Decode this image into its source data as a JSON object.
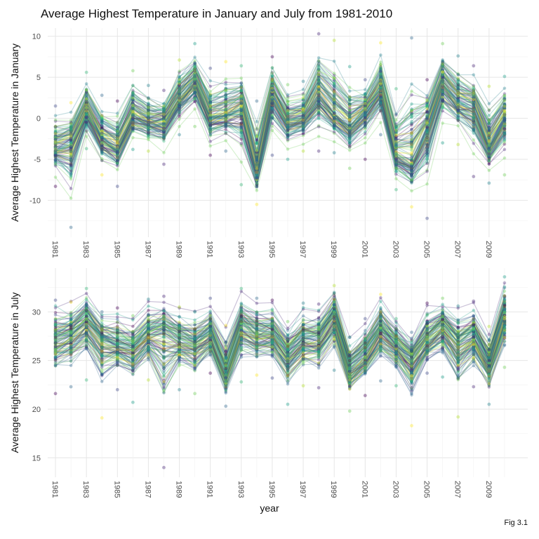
{
  "title": "Average Highest Temperature in January and July from 1981-2010",
  "caption": "Fig 3.1",
  "chart_data": [
    {
      "type": "line",
      "ylabel": "Average Highest Temperature in January",
      "xlabel": "",
      "x_ticks": [
        "1981",
        "1983",
        "1985",
        "1987",
        "1989",
        "1991",
        "1993",
        "1995",
        "1997",
        "1999",
        "2001",
        "2003",
        "2005",
        "2007",
        "2009"
      ],
      "xlim": [
        1980.5,
        2011.5
      ],
      "ylim": [
        -14.5,
        11
      ],
      "y_ticks": [
        -10,
        -5,
        0,
        5,
        10
      ],
      "grid": true,
      "legend": "none",
      "summary": {
        "x": [
          1981,
          1982,
          1983,
          1984,
          1985,
          1986,
          1987,
          1988,
          1989,
          1990,
          1991,
          1992,
          1993,
          1994,
          1995,
          1996,
          1997,
          1998,
          1999,
          2000,
          2001,
          2002,
          2003,
          2004,
          2005,
          2006,
          2007,
          2008,
          2009,
          2010
        ],
        "mean": [
          -3.5,
          -3.0,
          1.0,
          -2.5,
          -3.5,
          0.5,
          -0.5,
          -0.5,
          2.5,
          4.5,
          0.0,
          0.5,
          1.5,
          -6.5,
          3.0,
          -0.5,
          0.0,
          3.0,
          0.5,
          -1.0,
          1.0,
          3.5,
          -4.5,
          -5.5,
          -1.0,
          4.5,
          2.0,
          1.5,
          -3.5,
          0.0
        ],
        "min": [
          -8.3,
          -13.3,
          -3.7,
          -6.9,
          -8.3,
          -3.8,
          -4.0,
          -5.6,
          -2.0,
          -1.0,
          -4.5,
          -4.0,
          -8.1,
          -10.5,
          -4.5,
          -5.0,
          -4.0,
          -4.0,
          -4.2,
          -6.1,
          -5.0,
          -2.0,
          -8.7,
          -10.8,
          -12.2,
          -3.0,
          -3.2,
          -7.1,
          -7.9,
          -6.9
        ],
        "max": [
          1.5,
          1.9,
          5.6,
          2.8,
          2.1,
          5.8,
          4.0,
          3.4,
          7.1,
          9.1,
          6.1,
          6.9,
          6.4,
          2.1,
          7.5,
          4.1,
          4.5,
          10.3,
          9.5,
          6.3,
          4.7,
          9.2,
          3.6,
          9.8,
          4.7,
          9.1,
          7.6,
          6.4,
          3.9,
          5.1
        ]
      }
    },
    {
      "type": "line",
      "ylabel": "Average Highest Temperature in July",
      "xlabel": "year",
      "x_ticks": [
        "1981",
        "1983",
        "1985",
        "1987",
        "1989",
        "1991",
        "1993",
        "1995",
        "1997",
        "1999",
        "2001",
        "2003",
        "2005",
        "2007",
        "2009"
      ],
      "xlim": [
        1980.5,
        2011.5
      ],
      "ylim": [
        13,
        34.5
      ],
      "y_ticks": [
        15,
        20,
        25,
        30
      ],
      "grid": true,
      "legend": "none",
      "summary": {
        "x": [
          1981,
          1982,
          1983,
          1984,
          1985,
          1986,
          1987,
          1988,
          1989,
          1990,
          1991,
          1992,
          1993,
          1994,
          1995,
          1996,
          1997,
          1998,
          1999,
          2000,
          2001,
          2002,
          2003,
          2004,
          2005,
          2006,
          2007,
          2008,
          2009,
          2010
        ],
        "mean": [
          27.0,
          27.5,
          29.0,
          27.0,
          26.5,
          26.0,
          27.5,
          28.0,
          27.0,
          26.5,
          27.5,
          23.5,
          28.5,
          27.5,
          27.5,
          25.5,
          27.0,
          27.0,
          29.5,
          24.0,
          25.5,
          28.0,
          26.5,
          25.0,
          27.0,
          28.5,
          26.5,
          27.5,
          24.5,
          29.5
        ],
        "min": [
          21.6,
          22.3,
          23.0,
          19.1,
          22.0,
          20.7,
          23.0,
          14.0,
          22.0,
          21.6,
          23.7,
          20.3,
          22.8,
          23.5,
          23.2,
          20.5,
          22.4,
          22.2,
          24.0,
          19.8,
          21.4,
          22.9,
          22.4,
          18.3,
          23.7,
          23.3,
          19.2,
          22.3,
          20.5,
          24.3
        ],
        "max": [
          31.2,
          31.0,
          32.4,
          30.0,
          30.4,
          29.6,
          31.3,
          31.6,
          30.5,
          30.0,
          31.4,
          28.6,
          32.4,
          31.4,
          31.2,
          29.0,
          30.9,
          30.8,
          32.7,
          27.4,
          29.3,
          31.8,
          29.3,
          27.9,
          30.9,
          31.4,
          30.6,
          31.1,
          28.5,
          33.6
        ]
      }
    }
  ]
}
